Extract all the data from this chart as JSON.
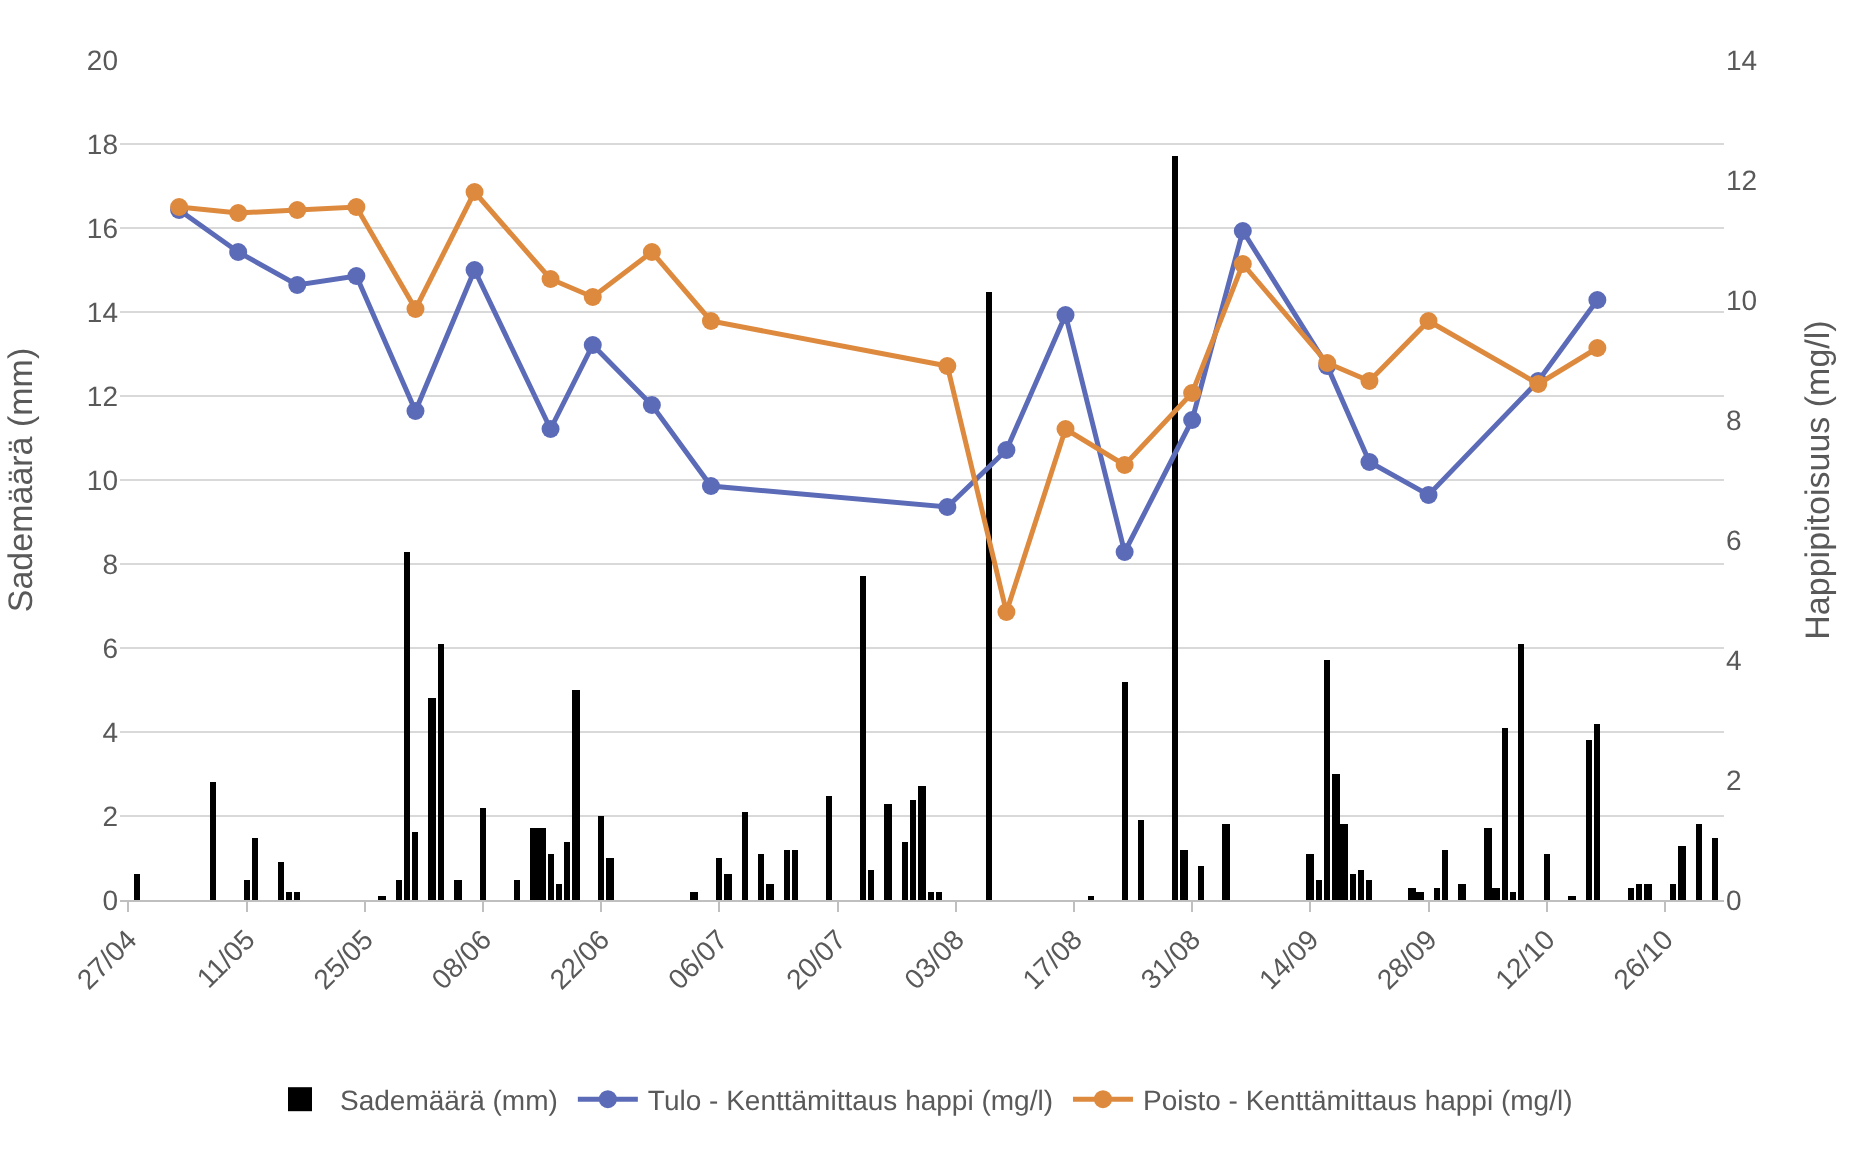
{
  "chart_data": {
    "type": "bar",
    "ylabel": "Sademäärä (mm)",
    "y2label": "Happipitoisuus (mg/l)",
    "xlim": [
      "--04-26",
      "--11-02"
    ],
    "xticks": [
      {
        "value": "--04-27",
        "label": "27/04"
      },
      {
        "value": "--05-11",
        "label": "11/05"
      },
      {
        "value": "--05-25",
        "label": "25/05"
      },
      {
        "value": "--06-08",
        "label": "08/06"
      },
      {
        "value": "--06-22",
        "label": "22/06"
      },
      {
        "value": "--07-06",
        "label": "06/07"
      },
      {
        "value": "--07-20",
        "label": "20/07"
      },
      {
        "value": "--08-03",
        "label": "03/08"
      },
      {
        "value": "--08-17",
        "label": "17/08"
      },
      {
        "value": "--08-31",
        "label": "31/08"
      },
      {
        "value": "--09-14",
        "label": "14/09"
      },
      {
        "value": "--09-28",
        "label": "28/09"
      },
      {
        "value": "--10-12",
        "label": "12/10"
      },
      {
        "value": "--10-26",
        "label": "26/10"
      }
    ],
    "ylim": [
      0,
      20
    ],
    "yticks": [
      0,
      2,
      4,
      6,
      8,
      10,
      12,
      14,
      16,
      18,
      20
    ],
    "y2lim": [
      0,
      14
    ],
    "y2ticks": [
      0,
      2,
      4,
      6,
      8,
      10,
      12,
      14
    ],
    "grid": "y",
    "legend": "bottom",
    "marker": "circle",
    "line_style": "solid",
    "series": [
      {
        "name": "Sademäärä (mm)",
        "color": "#000000",
        "x": [
          "--04-28",
          "--05-07",
          "--05-11",
          "--05-12",
          "--05-15",
          "--05-16",
          "--05-17",
          "--05-27",
          "--05-29",
          "--05-30",
          "--05-31",
          "--06-02",
          "--06-03",
          "--06-05",
          "--06-08",
          "--06-12",
          "--06-14",
          "--06-15",
          "--06-16",
          "--06-17",
          "--06-18",
          "--06-19",
          "--06-22",
          "--06-23",
          "--07-03",
          "--07-06",
          "--07-07",
          "--07-09",
          "--07-11",
          "--07-12",
          "--07-14",
          "--07-15",
          "--07-19",
          "--07-23",
          "--07-24",
          "--07-26",
          "--07-28",
          "--07-29",
          "--07-30",
          "--07-31",
          "--08-01",
          "--08-07",
          "--08-19",
          "--08-23",
          "--08-25",
          "--08-29",
          "--08-30",
          "--09-01",
          "--09-04",
          "--09-14",
          "--09-15",
          "--09-16",
          "--09-17",
          "--09-18",
          "--09-19",
          "--09-20",
          "--09-21",
          "--09-26",
          "--09-27",
          "--09-29",
          "--09-30",
          "--10-02",
          "--10-05",
          "--10-06",
          "--10-07",
          "--10-08",
          "--10-09",
          "--10-12",
          "--10-15",
          "--10-17",
          "--10-18",
          "--10-22",
          "--10-23",
          "--10-24",
          "--10-27",
          "--10-28",
          "--10-30",
          "--11-01"
        ],
        "values": [
          0.6,
          2.8,
          0.5,
          1.5,
          0.9,
          0.2,
          0.2,
          0.1,
          0.5,
          8.3,
          1.6,
          4.8,
          6.1,
          0.5,
          2.2,
          0.5,
          1.7,
          1.7,
          1.1,
          0.4,
          1.4,
          5.0,
          2.0,
          1.0,
          0.2,
          1.0,
          0.6,
          2.1,
          1.1,
          0.4,
          1.2,
          1.2,
          2.5,
          7.7,
          0.7,
          2.3,
          1.4,
          2.4,
          2.7,
          0.2,
          0.2,
          14.5,
          0.1,
          5.2,
          1.9,
          17.7,
          1.2,
          0.8,
          1.8,
          1.1,
          0.5,
          5.7,
          3.0,
          1.8,
          0.6,
          0.7,
          0.5,
          0.3,
          0.2,
          0.3,
          1.2,
          0.4,
          1.7,
          0.3,
          4.1,
          0.2,
          6.1,
          1.1,
          0.1,
          3.8,
          4.2,
          0.3,
          0.4,
          0.4,
          0.4,
          1.3,
          1.8,
          1.5
        ]
      },
      {
        "name": "Tulo - Kenttämittaus happi (mg/l)",
        "type": "line",
        "axis": "y2",
        "color": "#5b6bb8",
        "x": [
          "--05-03",
          "--05-10",
          "--05-17",
          "--05-24",
          "--05-31",
          "--06-07",
          "--06-16",
          "--06-21",
          "--06-28",
          "--07-05",
          "--08-02",
          "--08-09",
          "--08-16",
          "--08-23",
          "--08-31",
          "--09-06",
          "--09-16",
          "--09-21",
          "--09-28",
          "--10-11",
          "--10-18"
        ],
        "values": [
          11.5,
          10.8,
          10.25,
          10.4,
          8.15,
          10.5,
          7.85,
          9.25,
          8.25,
          6.9,
          6.55,
          7.5,
          9.75,
          5.8,
          8.0,
          11.15,
          8.9,
          7.3,
          6.75,
          8.65,
          10.0
        ]
      },
      {
        "name": "Poisto - Kenttämittaus happi (mg/l)",
        "type": "line",
        "axis": "y2",
        "color": "#dd8a3e",
        "x": [
          "--05-03",
          "--05-10",
          "--05-17",
          "--05-24",
          "--05-31",
          "--06-07",
          "--06-16",
          "--06-21",
          "--06-28",
          "--07-05",
          "--08-02",
          "--08-09",
          "--08-16",
          "--08-23",
          "--08-31",
          "--09-06",
          "--09-16",
          "--09-21",
          "--09-28",
          "--10-11",
          "--10-18"
        ],
        "values": [
          11.55,
          11.45,
          11.5,
          11.55,
          9.85,
          11.8,
          10.35,
          10.05,
          10.8,
          9.65,
          8.9,
          4.8,
          7.85,
          7.25,
          8.45,
          10.6,
          8.95,
          8.65,
          9.65,
          8.6,
          9.2
        ]
      }
    ]
  }
}
